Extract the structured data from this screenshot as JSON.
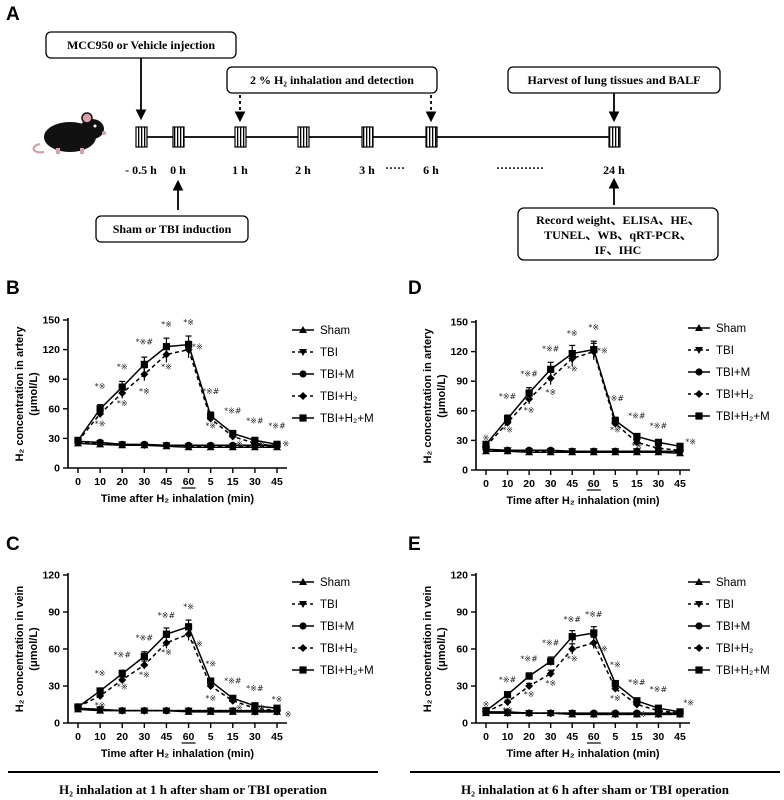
{
  "panel_a": {
    "letter": "A",
    "injection_label": "MCC950 or Vehicle injection",
    "inhalation_label": "2 % H₂ inhalation and detection",
    "harvest_label": "Harvest of lung tissues and BALF",
    "induction_label": "Sham or TBI induction",
    "record_lines": [
      "Record weight、ELISA、HE、",
      "TUNEL、WB、qRT-PCR、",
      "IF、IHC"
    ],
    "time_points": [
      "- 0.5 h",
      "0 h",
      "1 h",
      "2 h",
      "3 h",
      "6 h",
      "24 h"
    ],
    "dots_short": "·····",
    "dots_long": "············"
  },
  "captions": {
    "left": "H₂ inhalation at 1 h after sham or TBI operation",
    "right": "H₂ inhalation at 6 h after sham or TBI operation"
  },
  "colors": {
    "ink": "#000000",
    "annotation": "#222222"
  },
  "legend_labels": [
    "Sham",
    "TBI",
    "TBI+M",
    "TBI+H₂",
    "TBI+H₂+M"
  ],
  "chart_data": [
    {
      "letter": "B",
      "type": "line",
      "ylabel_lines": [
        "H₂ concentration in artery",
        "(μmol/L)"
      ],
      "xlabel": "Time after H₂ inhalation (min)",
      "x": [
        "0",
        "10",
        "20",
        "30",
        "45",
        "60",
        "5",
        "15",
        "30",
        "45"
      ],
      "underline_tick": "60",
      "ylim": [
        0,
        150
      ],
      "yticks": [
        "0",
        "30",
        "60",
        "90",
        "120",
        "150"
      ],
      "series": [
        {
          "name": "Sham",
          "values": [
            25,
            24,
            23,
            23,
            22,
            21,
            21,
            21,
            21,
            21
          ]
        },
        {
          "name": "TBI",
          "values": [
            26,
            25,
            24,
            23,
            23,
            22,
            22,
            22,
            22,
            22
          ]
        },
        {
          "name": "TBI+M",
          "values": [
            27,
            26,
            24,
            24,
            23,
            23,
            23,
            23,
            23,
            23
          ]
        },
        {
          "name": "TBI+H₂",
          "values": [
            27,
            55,
            76,
            95,
            115,
            120,
            50,
            32,
            25,
            22
          ]
        },
        {
          "name": "TBI+H₂+M",
          "values": [
            28,
            60,
            82,
            105,
            123,
            125,
            53,
            35,
            28,
            24
          ]
        }
      ],
      "annotations": [
        {
          "x": 1,
          "y": 80,
          "text": "*※"
        },
        {
          "x": 1,
          "y": 42,
          "text": "*※"
        },
        {
          "x": 2,
          "y": 100,
          "text": "*※"
        },
        {
          "x": 2,
          "y": 63,
          "text": "*※"
        },
        {
          "x": 3,
          "y": 125,
          "text": "*※#"
        },
        {
          "x": 3,
          "y": 75,
          "text": "*※"
        },
        {
          "x": 4,
          "y": 143,
          "text": "*※"
        },
        {
          "x": 4,
          "y": 100,
          "text": "*※"
        },
        {
          "x": 5,
          "y": 145,
          "text": "*※"
        },
        {
          "x": 5.4,
          "y": 120,
          "text": "*※"
        },
        {
          "x": 6,
          "y": 75,
          "text": "*※#"
        },
        {
          "x": 6,
          "y": 40,
          "text": "*※"
        },
        {
          "x": 7,
          "y": 55,
          "text": "*※#"
        },
        {
          "x": 7.3,
          "y": 22,
          "text": "※"
        },
        {
          "x": 8,
          "y": 45,
          "text": "*※#"
        },
        {
          "x": 8.3,
          "y": 22,
          "text": "※"
        },
        {
          "x": 9,
          "y": 40,
          "text": "*※#"
        },
        {
          "x": 9.4,
          "y": 22,
          "text": "※"
        }
      ]
    },
    {
      "letter": "D",
      "type": "line",
      "ylabel_lines": [
        "H₂ concentration in artery",
        "(μmol/L)"
      ],
      "xlabel": "Time after H₂ inhalation (min)",
      "x": [
        "0",
        "10",
        "20",
        "30",
        "45",
        "60",
        "5",
        "15",
        "30",
        "45"
      ],
      "underline_tick": "60",
      "ylim": [
        0,
        150
      ],
      "yticks": [
        "0",
        "30",
        "60",
        "90",
        "120",
        "150"
      ],
      "series": [
        {
          "name": "Sham",
          "values": [
            19,
            19,
            18,
            18,
            18,
            18,
            18,
            18,
            18,
            17
          ]
        },
        {
          "name": "TBI",
          "values": [
            20,
            20,
            19,
            19,
            19,
            19,
            19,
            19,
            19,
            18
          ]
        },
        {
          "name": "TBI+M",
          "values": [
            21,
            20,
            20,
            20,
            19,
            19,
            19,
            19,
            19,
            19
          ]
        },
        {
          "name": "TBI+H₂",
          "values": [
            24,
            48,
            72,
            93,
            113,
            120,
            47,
            28,
            22,
            20
          ]
        },
        {
          "name": "TBI+H₂+M",
          "values": [
            26,
            52,
            78,
            102,
            118,
            122,
            50,
            34,
            28,
            24
          ]
        }
      ],
      "annotations": [
        {
          "x": 0,
          "y": 30,
          "text": "※"
        },
        {
          "x": 1,
          "y": 72,
          "text": "*※#"
        },
        {
          "x": 1,
          "y": 38,
          "text": "*※"
        },
        {
          "x": 2,
          "y": 95,
          "text": "*※#"
        },
        {
          "x": 2,
          "y": 58,
          "text": "*※"
        },
        {
          "x": 3,
          "y": 120,
          "text": "*※#"
        },
        {
          "x": 3,
          "y": 76,
          "text": "*※"
        },
        {
          "x": 4,
          "y": 136,
          "text": "*※"
        },
        {
          "x": 4,
          "y": 100,
          "text": "*※"
        },
        {
          "x": 5,
          "y": 142,
          "text": "*※"
        },
        {
          "x": 5.4,
          "y": 118,
          "text": "*※"
        },
        {
          "x": 6,
          "y": 70,
          "text": "*※#"
        },
        {
          "x": 6,
          "y": 38,
          "text": "*※"
        },
        {
          "x": 7,
          "y": 52,
          "text": "*※#"
        },
        {
          "x": 7,
          "y": 22,
          "text": "*※"
        },
        {
          "x": 8,
          "y": 42,
          "text": "*※#"
        },
        {
          "x": 9.5,
          "y": 26,
          "text": "*※"
        }
      ]
    },
    {
      "letter": "C",
      "type": "line",
      "ylabel_lines": [
        "H₂ concentration in vein",
        "(μmol/L)"
      ],
      "xlabel": "Time after H₂ inhalation (min)",
      "x": [
        "0",
        "10",
        "20",
        "30",
        "45",
        "60",
        "5",
        "15",
        "30",
        "45"
      ],
      "underline_tick": "60",
      "ylim": [
        0,
        120
      ],
      "yticks": [
        "0",
        "30",
        "60",
        "90",
        "120"
      ],
      "series": [
        {
          "name": "Sham",
          "values": [
            11,
            10,
            10,
            10,
            10,
            9,
            9,
            9,
            9,
            9
          ]
        },
        {
          "name": "TBI",
          "values": [
            12,
            11,
            10,
            10,
            10,
            10,
            10,
            10,
            9,
            9
          ]
        },
        {
          "name": "TBI+M",
          "values": [
            12,
            11,
            10,
            10,
            10,
            10,
            10,
            10,
            10,
            10
          ]
        },
        {
          "name": "TBI+H₂",
          "values": [
            13,
            22,
            35,
            47,
            65,
            72,
            30,
            18,
            12,
            10
          ]
        },
        {
          "name": "TBI+H₂+M",
          "values": [
            13,
            26,
            40,
            54,
            72,
            78,
            34,
            20,
            14,
            12
          ]
        }
      ],
      "annotations": [
        {
          "x": 1,
          "y": 38,
          "text": "*※"
        },
        {
          "x": 1,
          "y": 12,
          "text": "*※"
        },
        {
          "x": 2,
          "y": 53,
          "text": "*※#"
        },
        {
          "x": 2,
          "y": 27,
          "text": "*※"
        },
        {
          "x": 3,
          "y": 67,
          "text": "*※#"
        },
        {
          "x": 3,
          "y": 37,
          "text": "*※"
        },
        {
          "x": 4,
          "y": 85,
          "text": "*※#"
        },
        {
          "x": 4,
          "y": 55,
          "text": "*※"
        },
        {
          "x": 5,
          "y": 92,
          "text": "*※"
        },
        {
          "x": 5.4,
          "y": 62,
          "text": "*※"
        },
        {
          "x": 6,
          "y": 46,
          "text": "*※"
        },
        {
          "x": 6,
          "y": 18,
          "text": "*※"
        },
        {
          "x": 7,
          "y": 32,
          "text": "*※#"
        },
        {
          "x": 7.3,
          "y": 10,
          "text": "※"
        },
        {
          "x": 8,
          "y": 26,
          "text": "*※#"
        },
        {
          "x": 8.3,
          "y": 10,
          "text": "※"
        },
        {
          "x": 9,
          "y": 17,
          "text": "*※"
        },
        {
          "x": 9.5,
          "y": 5,
          "text": "※"
        }
      ]
    },
    {
      "letter": "E",
      "type": "line",
      "ylabel_lines": [
        "H₂ concentration in vein",
        "(μmol/L)"
      ],
      "xlabel": "Time after H₂ inhalation (min)",
      "x": [
        "0",
        "10",
        "20",
        "30",
        "45",
        "60",
        "5",
        "15",
        "30",
        "45"
      ],
      "underline_tick": "60",
      "ylim": [
        0,
        120
      ],
      "yticks": [
        "0",
        "30",
        "60",
        "90",
        "120"
      ],
      "series": [
        {
          "name": "Sham",
          "values": [
            8,
            8,
            8,
            8,
            7,
            7,
            7,
            7,
            7,
            7
          ]
        },
        {
          "name": "TBI",
          "values": [
            9,
            8,
            8,
            8,
            8,
            7,
            7,
            7,
            7,
            7
          ]
        },
        {
          "name": "TBI+M",
          "values": [
            9,
            9,
            8,
            8,
            8,
            8,
            8,
            8,
            8,
            8
          ]
        },
        {
          "name": "TBI+H₂",
          "values": [
            9,
            17,
            30,
            40,
            60,
            65,
            28,
            15,
            10,
            8
          ]
        },
        {
          "name": "TBI+H₂+M",
          "values": [
            10,
            23,
            38,
            50,
            70,
            73,
            32,
            18,
            12,
            9
          ]
        }
      ],
      "annotations": [
        {
          "x": 0,
          "y": 13,
          "text": "※"
        },
        {
          "x": 1,
          "y": 33,
          "text": "*※#"
        },
        {
          "x": 1,
          "y": 8,
          "text": "*※"
        },
        {
          "x": 2,
          "y": 50,
          "text": "*※#"
        },
        {
          "x": 2,
          "y": 21,
          "text": "*※"
        },
        {
          "x": 3,
          "y": 63,
          "text": "*※#"
        },
        {
          "x": 3,
          "y": 30,
          "text": "*※"
        },
        {
          "x": 4,
          "y": 82,
          "text": "*※#"
        },
        {
          "x": 4,
          "y": 50,
          "text": "*※"
        },
        {
          "x": 5,
          "y": 86,
          "text": "*※#"
        },
        {
          "x": 5.4,
          "y": 58,
          "text": "*※"
        },
        {
          "x": 6,
          "y": 45,
          "text": "*※"
        },
        {
          "x": 6,
          "y": 18,
          "text": "*※"
        },
        {
          "x": 7,
          "y": 31,
          "text": "*※#"
        },
        {
          "x": 7.3,
          "y": 5,
          "text": "※"
        },
        {
          "x": 8,
          "y": 25,
          "text": "*※#"
        },
        {
          "x": 9.4,
          "y": 14,
          "text": "*※"
        }
      ]
    }
  ]
}
